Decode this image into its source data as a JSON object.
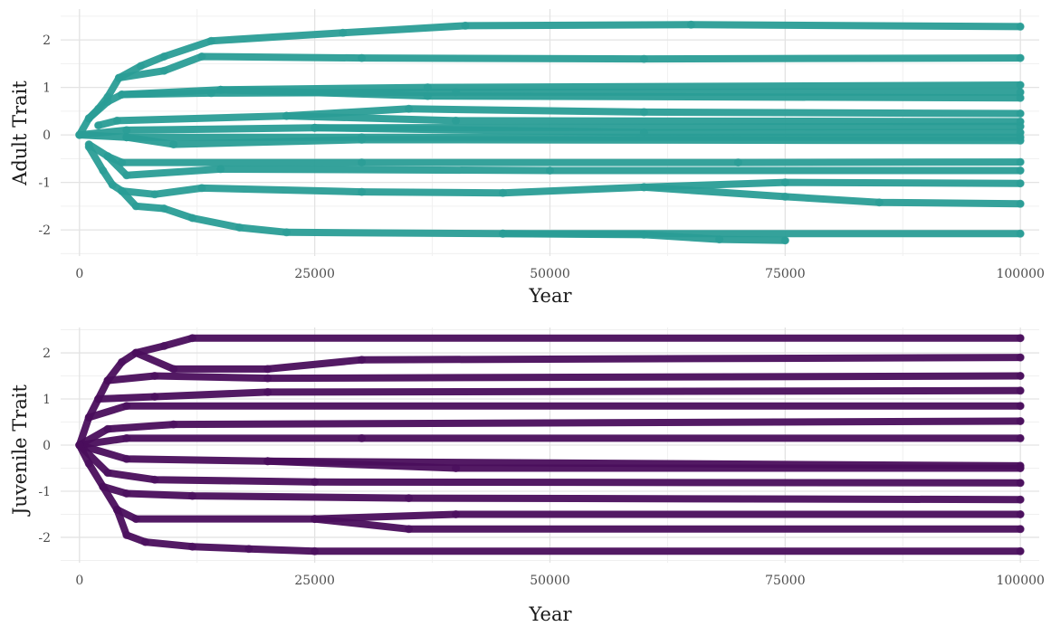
{
  "chart_data": [
    {
      "type": "scatter",
      "xlabel": "Year",
      "ylabel": "Adult Trait",
      "xlim": [
        -2000,
        102000
      ],
      "ylim": [
        -2.55,
        2.65
      ],
      "xticks": [
        0,
        25000,
        50000,
        75000,
        100000
      ],
      "xtick_labels": [
        "0",
        "25000",
        "50000",
        "75000",
        "100000"
      ],
      "yticks": [
        -2,
        -1,
        0,
        1,
        2
      ],
      "ytick_labels": [
        "-2",
        "-1",
        "0",
        "1",
        "2"
      ],
      "grid": true,
      "color": "#2a9d96",
      "series": [
        {
          "values": [
            [
              0,
              0
            ],
            [
              1000,
              0.35
            ],
            [
              2000,
              0.55
            ],
            [
              3000,
              0.8
            ],
            [
              4200,
              1.2
            ],
            [
              6500,
              1.45
            ],
            [
              9000,
              1.65
            ],
            [
              14000,
              1.98
            ],
            [
              28000,
              2.15
            ],
            [
              41000,
              2.3
            ],
            [
              65000,
              2.32
            ],
            [
              100000,
              2.28
            ]
          ]
        },
        {
          "values": [
            [
              4200,
              1.2
            ],
            [
              9000,
              1.35
            ],
            [
              13000,
              1.65
            ],
            [
              30000,
              1.62
            ],
            [
              60000,
              1.6
            ],
            [
              100000,
              1.62
            ]
          ]
        },
        {
          "values": [
            [
              1000,
              0.35
            ],
            [
              3000,
              0.7
            ],
            [
              4500,
              0.85
            ],
            [
              15000,
              0.95
            ],
            [
              37000,
              1.0
            ],
            [
              100000,
              1.05
            ]
          ]
        },
        {
          "values": [
            [
              4500,
              0.85
            ],
            [
              14000,
              0.88
            ],
            [
              40000,
              0.9
            ],
            [
              100000,
              0.9
            ]
          ]
        },
        {
          "values": [
            [
              15000,
              0.95
            ],
            [
              37000,
              0.82
            ],
            [
              100000,
              0.78
            ]
          ]
        },
        {
          "values": [
            [
              2000,
              0.2
            ],
            [
              4000,
              0.3
            ],
            [
              22000,
              0.4
            ],
            [
              35000,
              0.55
            ],
            [
              60000,
              0.48
            ],
            [
              100000,
              0.45
            ]
          ]
        },
        {
          "values": [
            [
              22000,
              0.4
            ],
            [
              40000,
              0.3
            ],
            [
              100000,
              0.28
            ]
          ]
        },
        {
          "values": [
            [
              0,
              0
            ],
            [
              5000,
              0.1
            ],
            [
              25000,
              0.15
            ],
            [
              100000,
              0.18
            ]
          ]
        },
        {
          "values": [
            [
              25000,
              0.15
            ],
            [
              60000,
              0.05
            ],
            [
              100000,
              0.05
            ]
          ]
        },
        {
          "values": [
            [
              0,
              0
            ],
            [
              5000,
              -0.05
            ],
            [
              30000,
              -0.05
            ],
            [
              100000,
              -0.05
            ]
          ]
        },
        {
          "values": [
            [
              5000,
              -0.05
            ],
            [
              10000,
              -0.2
            ],
            [
              30000,
              -0.1
            ],
            [
              100000,
              -0.12
            ]
          ]
        },
        {
          "values": [
            [
              1000,
              -0.2
            ],
            [
              3000,
              -0.45
            ],
            [
              4500,
              -0.58
            ],
            [
              30000,
              -0.58
            ],
            [
              70000,
              -0.58
            ],
            [
              100000,
              -0.57
            ]
          ]
        },
        {
          "values": [
            [
              3000,
              -0.45
            ],
            [
              5000,
              -0.85
            ],
            [
              15000,
              -0.72
            ],
            [
              50000,
              -0.75
            ],
            [
              100000,
              -0.75
            ]
          ]
        },
        {
          "values": [
            [
              1000,
              -0.25
            ],
            [
              2500,
              -0.75
            ],
            [
              3500,
              -1.05
            ],
            [
              4500,
              -1.18
            ],
            [
              8000,
              -1.25
            ],
            [
              13000,
              -1.12
            ],
            [
              30000,
              -1.2
            ],
            [
              45000,
              -1.22
            ],
            [
              60000,
              -1.1
            ],
            [
              75000,
              -1.0
            ],
            [
              100000,
              -1.02
            ]
          ]
        },
        {
          "values": [
            [
              60000,
              -1.1
            ],
            [
              75000,
              -1.3
            ],
            [
              85000,
              -1.42
            ],
            [
              100000,
              -1.45
            ]
          ]
        },
        {
          "values": [
            [
              4500,
              -1.18
            ],
            [
              6000,
              -1.5
            ],
            [
              9000,
              -1.55
            ],
            [
              12000,
              -1.75
            ],
            [
              17000,
              -1.95
            ],
            [
              22000,
              -2.05
            ],
            [
              45000,
              -2.08
            ],
            [
              100000,
              -2.08
            ]
          ]
        },
        {
          "values": [
            [
              45000,
              -2.08
            ],
            [
              60000,
              -2.1
            ],
            [
              68000,
              -2.2
            ],
            [
              75000,
              -2.22
            ]
          ]
        }
      ]
    },
    {
      "type": "scatter",
      "xlabel": "Year",
      "ylabel": "Juvenile Trait",
      "xlim": [
        -2000,
        102000
      ],
      "ylim": [
        -2.55,
        2.55
      ],
      "xticks": [
        0,
        25000,
        50000,
        75000,
        100000
      ],
      "xtick_labels": [
        "0",
        "25000",
        "50000",
        "75000",
        "100000"
      ],
      "yticks": [
        -2,
        -1,
        0,
        1,
        2
      ],
      "ytick_labels": [
        "-2",
        "-1",
        "0",
        "1",
        "2"
      ],
      "grid": true,
      "color": "#4a0e5c",
      "series": [
        {
          "values": [
            [
              0,
              0
            ],
            [
              1000,
              0.6
            ],
            [
              2000,
              1.0
            ],
            [
              3000,
              1.4
            ],
            [
              4500,
              1.8
            ],
            [
              6000,
              2.0
            ],
            [
              9000,
              2.15
            ],
            [
              12000,
              2.32
            ],
            [
              100000,
              2.32
            ]
          ]
        },
        {
          "values": [
            [
              6000,
              2.0
            ],
            [
              10000,
              1.65
            ],
            [
              20000,
              1.65
            ],
            [
              30000,
              1.85
            ],
            [
              100000,
              1.9
            ]
          ]
        },
        {
          "values": [
            [
              3000,
              1.4
            ],
            [
              8000,
              1.5
            ],
            [
              20000,
              1.45
            ],
            [
              100000,
              1.5
            ]
          ]
        },
        {
          "values": [
            [
              2000,
              1.0
            ],
            [
              8000,
              1.05
            ],
            [
              20000,
              1.15
            ],
            [
              100000,
              1.18
            ]
          ]
        },
        {
          "values": [
            [
              1000,
              0.6
            ],
            [
              5000,
              0.85
            ],
            [
              100000,
              0.85
            ]
          ]
        },
        {
          "values": [
            [
              0,
              0
            ],
            [
              3000,
              0.35
            ],
            [
              10000,
              0.45
            ],
            [
              100000,
              0.52
            ]
          ]
        },
        {
          "values": [
            [
              0,
              0
            ],
            [
              5000,
              0.15
            ],
            [
              30000,
              0.15
            ],
            [
              100000,
              0.15
            ]
          ]
        },
        {
          "values": [
            [
              0,
              0
            ],
            [
              5000,
              -0.3
            ],
            [
              20000,
              -0.35
            ],
            [
              100000,
              -0.45
            ]
          ]
        },
        {
          "values": [
            [
              20000,
              -0.35
            ],
            [
              40000,
              -0.5
            ],
            [
              100000,
              -0.5
            ]
          ]
        },
        {
          "values": [
            [
              0,
              0
            ],
            [
              3000,
              -0.6
            ],
            [
              8000,
              -0.75
            ],
            [
              25000,
              -0.8
            ],
            [
              100000,
              -0.82
            ]
          ]
        },
        {
          "values": [
            [
              0,
              0
            ],
            [
              1000,
              -0.4
            ],
            [
              2500,
              -0.9
            ],
            [
              5000,
              -1.05
            ],
            [
              12000,
              -1.1
            ],
            [
              35000,
              -1.15
            ],
            [
              100000,
              -1.18
            ]
          ]
        },
        {
          "values": [
            [
              2500,
              -0.9
            ],
            [
              4000,
              -1.4
            ],
            [
              6000,
              -1.6
            ],
            [
              25000,
              -1.6
            ],
            [
              40000,
              -1.5
            ],
            [
              100000,
              -1.5
            ]
          ]
        },
        {
          "values": [
            [
              25000,
              -1.6
            ],
            [
              35000,
              -1.82
            ],
            [
              100000,
              -1.82
            ]
          ]
        },
        {
          "values": [
            [
              4000,
              -1.4
            ],
            [
              5000,
              -1.95
            ],
            [
              7000,
              -2.1
            ],
            [
              12000,
              -2.2
            ],
            [
              18000,
              -2.25
            ],
            [
              25000,
              -2.3
            ],
            [
              100000,
              -2.3
            ]
          ]
        }
      ]
    }
  ]
}
